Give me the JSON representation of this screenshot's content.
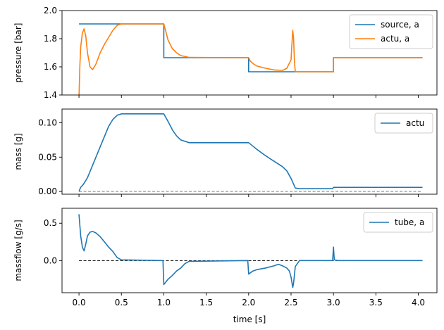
{
  "chart_data": [
    {
      "type": "line",
      "ylabel": "pressure [bar]",
      "xlim": [
        -0.2,
        4.22
      ],
      "ylim": [
        1.4,
        2.0
      ],
      "yticks": [
        1.4,
        1.6,
        1.8,
        2.0
      ],
      "ytick_labels": [
        "1.4",
        "1.6",
        "1.8",
        "2.0"
      ],
      "legend": "top-right",
      "series": [
        {
          "name": "source, a",
          "color": "#1f77b4",
          "points": [
            [
              0.0,
              1.905
            ],
            [
              1.0,
              1.905
            ],
            [
              1.0,
              1.665
            ],
            [
              2.0,
              1.665
            ],
            [
              2.0,
              1.565
            ],
            [
              3.0,
              1.565
            ],
            [
              3.0,
              1.665
            ],
            [
              4.05,
              1.665
            ]
          ]
        },
        {
          "name": "actu, a",
          "color": "#ff7f0e",
          "points": [
            [
              0.0,
              1.38
            ],
            [
              0.01,
              1.6
            ],
            [
              0.02,
              1.74
            ],
            [
              0.04,
              1.84
            ],
            [
              0.06,
              1.87
            ],
            [
              0.08,
              1.82
            ],
            [
              0.1,
              1.7
            ],
            [
              0.13,
              1.6
            ],
            [
              0.16,
              1.58
            ],
            [
              0.2,
              1.62
            ],
            [
              0.25,
              1.7
            ],
            [
              0.3,
              1.76
            ],
            [
              0.35,
              1.81
            ],
            [
              0.4,
              1.86
            ],
            [
              0.45,
              1.895
            ],
            [
              0.5,
              1.905
            ],
            [
              1.0,
              1.905
            ],
            [
              1.02,
              1.86
            ],
            [
              1.05,
              1.79
            ],
            [
              1.1,
              1.73
            ],
            [
              1.15,
              1.7
            ],
            [
              1.2,
              1.68
            ],
            [
              1.3,
              1.667
            ],
            [
              2.0,
              1.665
            ],
            [
              2.02,
              1.64
            ],
            [
              2.06,
              1.62
            ],
            [
              2.1,
              1.605
            ],
            [
              2.2,
              1.59
            ],
            [
              2.3,
              1.578
            ],
            [
              2.4,
              1.575
            ],
            [
              2.45,
              1.59
            ],
            [
              2.5,
              1.65
            ],
            [
              2.51,
              1.76
            ],
            [
              2.52,
              1.86
            ],
            [
              2.53,
              1.8
            ],
            [
              2.54,
              1.64
            ],
            [
              2.55,
              1.565
            ],
            [
              3.0,
              1.565
            ],
            [
              3.0,
              1.665
            ],
            [
              4.05,
              1.665
            ]
          ]
        }
      ]
    },
    {
      "type": "line",
      "ylabel": "mass [g]",
      "xlim": [
        -0.2,
        4.22
      ],
      "ylim": [
        -0.004,
        0.12
      ],
      "yticks": [
        0.0,
        0.05,
        0.1
      ],
      "ytick_labels": [
        "0.00",
        "0.05",
        "0.10"
      ],
      "legend": "top-right",
      "reference_line": {
        "y": 0.0,
        "color": "#808080",
        "style": "dashed"
      },
      "series": [
        {
          "name": "actu",
          "color": "#1f77b4",
          "points": [
            [
              0.0,
              0.0
            ],
            [
              0.02,
              0.006
            ],
            [
              0.05,
              0.01
            ],
            [
              0.1,
              0.02
            ],
            [
              0.15,
              0.035
            ],
            [
              0.2,
              0.05
            ],
            [
              0.25,
              0.065
            ],
            [
              0.3,
              0.08
            ],
            [
              0.35,
              0.095
            ],
            [
              0.4,
              0.105
            ],
            [
              0.45,
              0.111
            ],
            [
              0.5,
              0.113
            ],
            [
              1.0,
              0.113
            ],
            [
              1.05,
              0.102
            ],
            [
              1.1,
              0.09
            ],
            [
              1.15,
              0.081
            ],
            [
              1.2,
              0.075
            ],
            [
              1.3,
              0.071
            ],
            [
              2.0,
              0.071
            ],
            [
              2.05,
              0.066
            ],
            [
              2.1,
              0.061
            ],
            [
              2.2,
              0.052
            ],
            [
              2.3,
              0.044
            ],
            [
              2.4,
              0.036
            ],
            [
              2.45,
              0.03
            ],
            [
              2.5,
              0.019
            ],
            [
              2.55,
              0.005
            ],
            [
              2.6,
              0.004
            ],
            [
              2.99,
              0.004
            ],
            [
              3.0,
              0.006
            ],
            [
              4.05,
              0.006
            ]
          ]
        }
      ]
    },
    {
      "type": "line",
      "ylabel": "massflow [g/s]",
      "xlabel": "time [s]",
      "xlim": [
        -0.2,
        4.22
      ],
      "ylim": [
        -0.43,
        0.7
      ],
      "xticks": [
        0.0,
        0.5,
        1.0,
        1.5,
        2.0,
        2.5,
        3.0,
        3.5,
        4.0
      ],
      "xtick_labels": [
        "0.0",
        "0.5",
        "1.0",
        "1.5",
        "2.0",
        "2.5",
        "3.0",
        "3.5",
        "4.0"
      ],
      "yticks": [
        0.0,
        0.5
      ],
      "ytick_labels": [
        "0.0",
        "0.5"
      ],
      "legend": "top-right",
      "reference_line": {
        "y": 0.0,
        "color": "#000000",
        "style": "dashed"
      },
      "series": [
        {
          "name": "tube, a",
          "color": "#1f77b4",
          "points": [
            [
              0.0,
              0.62
            ],
            [
              0.02,
              0.33
            ],
            [
              0.04,
              0.18
            ],
            [
              0.06,
              0.13
            ],
            [
              0.08,
              0.22
            ],
            [
              0.1,
              0.33
            ],
            [
              0.13,
              0.38
            ],
            [
              0.16,
              0.39
            ],
            [
              0.2,
              0.37
            ],
            [
              0.25,
              0.32
            ],
            [
              0.3,
              0.25
            ],
            [
              0.35,
              0.18
            ],
            [
              0.4,
              0.12
            ],
            [
              0.45,
              0.04
            ],
            [
              0.5,
              0.01
            ],
            [
              0.99,
              0.0
            ],
            [
              1.0,
              -0.32
            ],
            [
              1.05,
              -0.25
            ],
            [
              1.1,
              -0.2
            ],
            [
              1.15,
              -0.14
            ],
            [
              1.2,
              -0.1
            ],
            [
              1.25,
              -0.04
            ],
            [
              1.3,
              -0.01
            ],
            [
              1.99,
              0.0
            ],
            [
              2.0,
              -0.18
            ],
            [
              2.05,
              -0.14
            ],
            [
              2.1,
              -0.12
            ],
            [
              2.2,
              -0.1
            ],
            [
              2.3,
              -0.07
            ],
            [
              2.35,
              -0.05
            ],
            [
              2.4,
              -0.07
            ],
            [
              2.45,
              -0.1
            ],
            [
              2.48,
              -0.14
            ],
            [
              2.5,
              -0.22
            ],
            [
              2.52,
              -0.36
            ],
            [
              2.53,
              -0.3
            ],
            [
              2.55,
              -0.08
            ],
            [
              2.6,
              0.0
            ],
            [
              2.99,
              0.0
            ],
            [
              3.0,
              0.18
            ],
            [
              3.01,
              0.01
            ],
            [
              3.05,
              0.0
            ],
            [
              4.05,
              0.0
            ]
          ]
        }
      ]
    }
  ]
}
